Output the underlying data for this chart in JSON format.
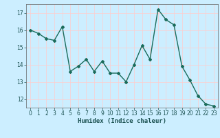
{
  "x": [
    0,
    1,
    2,
    3,
    4,
    5,
    6,
    7,
    8,
    9,
    10,
    11,
    12,
    13,
    14,
    15,
    16,
    17,
    18,
    19,
    20,
    21,
    22,
    23
  ],
  "y": [
    16.0,
    15.8,
    15.5,
    15.4,
    16.2,
    13.6,
    13.9,
    14.3,
    13.6,
    14.2,
    13.5,
    13.5,
    13.0,
    14.0,
    15.1,
    14.3,
    17.2,
    16.6,
    16.3,
    13.9,
    13.1,
    12.2,
    11.7,
    11.6
  ],
  "line_color": "#1a6b5a",
  "marker": "D",
  "marker_size": 2.0,
  "linewidth": 1.0,
  "xlabel": "Humidex (Indice chaleur)",
  "ylim": [
    11.5,
    17.5
  ],
  "xlim": [
    -0.5,
    23.5
  ],
  "yticks": [
    12,
    13,
    14,
    15,
    16,
    17
  ],
  "xticks": [
    0,
    1,
    2,
    3,
    4,
    5,
    6,
    7,
    8,
    9,
    10,
    11,
    12,
    13,
    14,
    15,
    16,
    17,
    18,
    19,
    20,
    21,
    22,
    23
  ],
  "bg_color": "#cceeff",
  "grid_color": "#ffcccc",
  "xlabel_fontsize": 6.5,
  "tick_fontsize": 5.5
}
